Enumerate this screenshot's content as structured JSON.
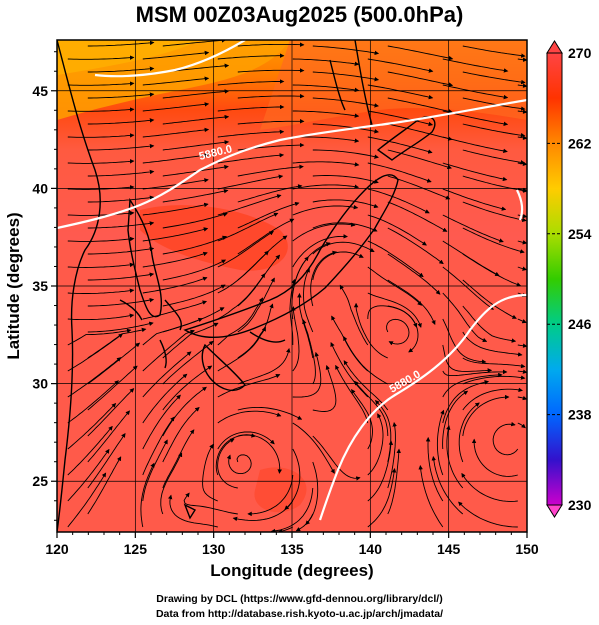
{
  "title": "MSM 00Z03Aug2025 (500.0hPa)",
  "xlabel": "Longitude (degrees)",
  "ylabel": "Latitude  (degrees)",
  "x_ticks": [
    120,
    125,
    130,
    135,
    140,
    145,
    150
  ],
  "y_ticks": [
    25,
    30,
    35,
    40,
    45
  ],
  "colorbar": {
    "min": 230,
    "max": 270,
    "ticks": [
      230,
      238,
      246,
      254,
      262,
      270
    ],
    "colors": [
      "#cc00cc",
      "#3311cc",
      "#0066ff",
      "#00aaee",
      "#00cc88",
      "#33cc00",
      "#aadd00",
      "#ffcc00",
      "#ff8800",
      "#ff3300",
      "#ff4444"
    ]
  },
  "contours": [
    {
      "label": "5880.0"
    },
    {
      "label": "5880.0"
    }
  ],
  "credits": {
    "line1": "Drawing by DCL (https://www.gfd-dennou.org/library/dcl/)",
    "line2": "Data from http://database.rish.kyoto-u.ac.jp/arch/jmadata/"
  },
  "chart_data": {
    "type": "map",
    "title": "MSM 00Z03Aug2025 (500.0hPa)",
    "xlabel": "Longitude (degrees)",
    "ylabel": "Latitude  (degrees)",
    "xlim": [
      120,
      150
    ],
    "ylim": [
      22.4,
      47.6
    ],
    "grid": true,
    "colorbar_range": [
      230,
      270
    ]
  }
}
